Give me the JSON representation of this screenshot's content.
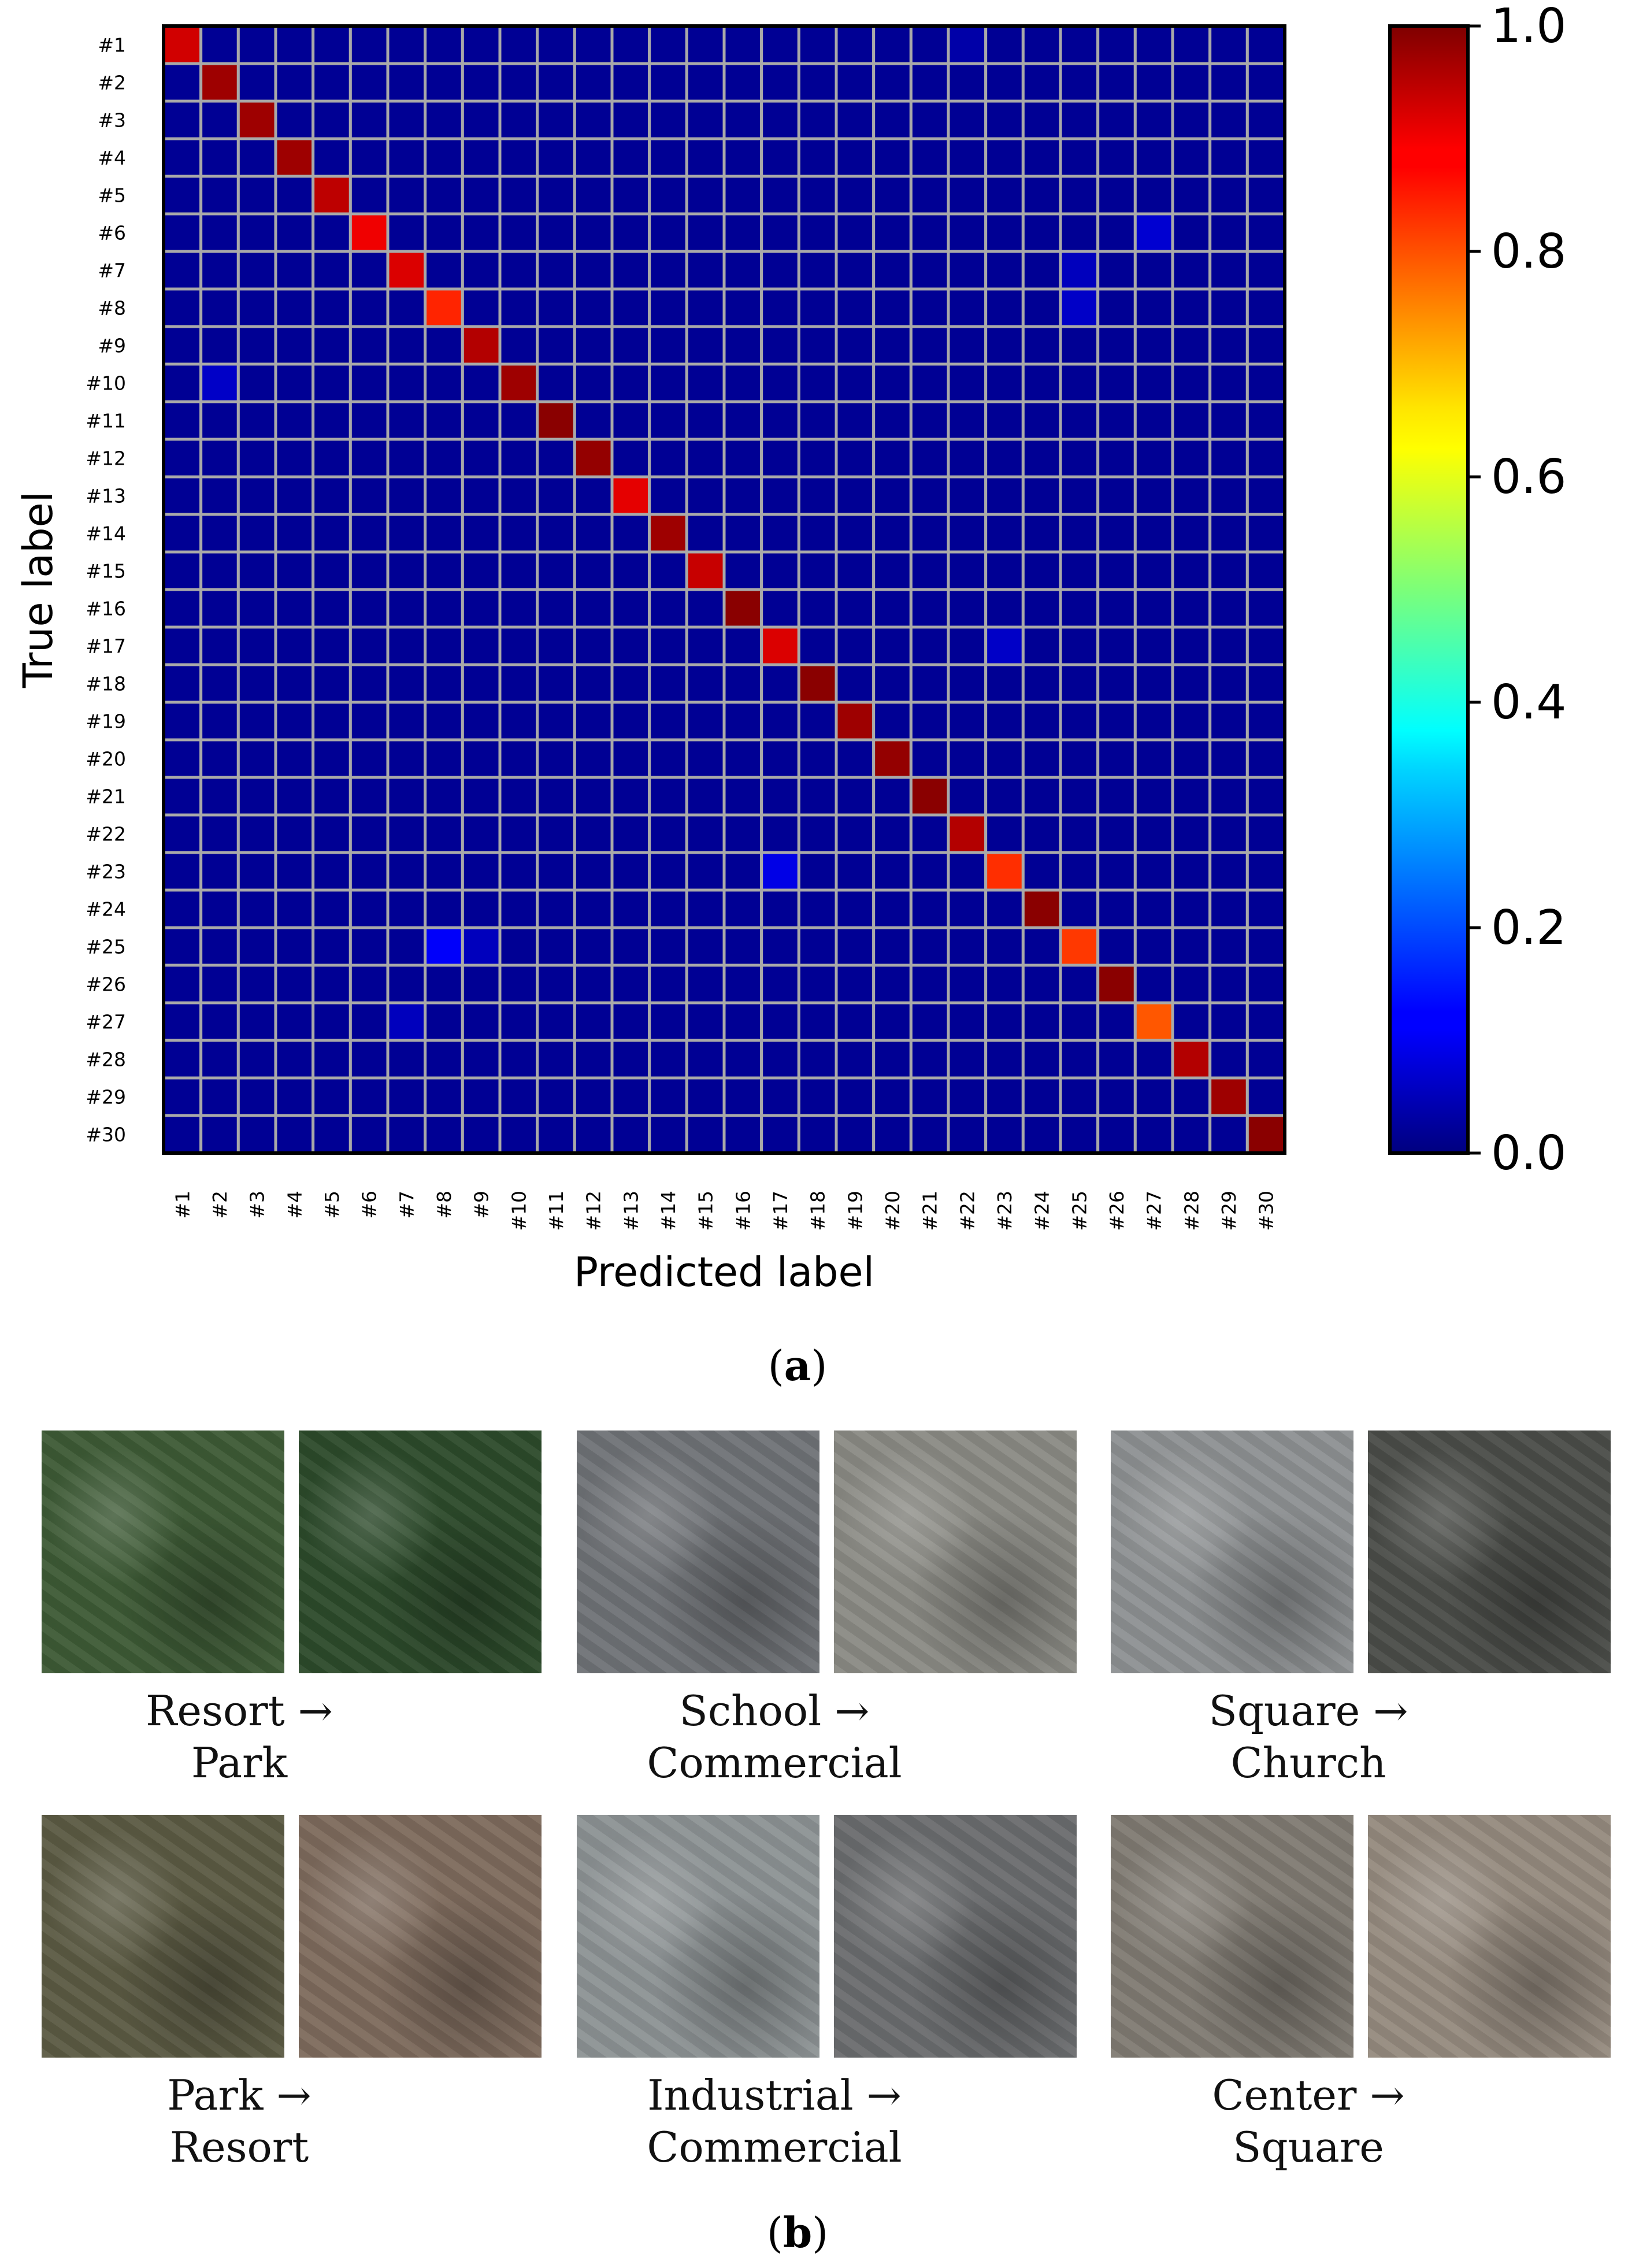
{
  "figure": {
    "caption_a": "a",
    "caption_b": "b"
  },
  "chart_data": {
    "type": "heatmap",
    "xlabel": "Predicted label",
    "ylabel": "True label",
    "labels": [
      "#1",
      "#2",
      "#3",
      "#4",
      "#5",
      "#6",
      "#7",
      "#8",
      "#9",
      "#10",
      "#11",
      "#12",
      "#13",
      "#14",
      "#15",
      "#16",
      "#17",
      "#18",
      "#19",
      "#20",
      "#21",
      "#22",
      "#23",
      "#24",
      "#25",
      "#26",
      "#27",
      "#28",
      "#29",
      "#30"
    ],
    "diagonal": [
      0.92,
      0.97,
      0.97,
      0.97,
      0.94,
      0.89,
      0.91,
      0.84,
      0.95,
      0.97,
      0.99,
      0.98,
      0.9,
      0.97,
      0.93,
      0.99,
      0.91,
      0.99,
      0.97,
      0.98,
      0.99,
      0.95,
      0.83,
      0.99,
      0.82,
      0.99,
      0.79,
      0.95,
      0.97,
      0.99
    ],
    "off_diagonal": [
      {
        "row": "#6",
        "col": "#27",
        "value": 0.08
      },
      {
        "row": "#7",
        "col": "#25",
        "value": 0.06
      },
      {
        "row": "#8",
        "col": "#25",
        "value": 0.07
      },
      {
        "row": "#10",
        "col": "#2",
        "value": 0.07
      },
      {
        "row": "#17",
        "col": "#23",
        "value": 0.07
      },
      {
        "row": "#23",
        "col": "#17",
        "value": 0.1
      },
      {
        "row": "#25",
        "col": "#8",
        "value": 0.12
      },
      {
        "row": "#25",
        "col": "#9",
        "value": 0.06
      },
      {
        "row": "#27",
        "col": "#7",
        "value": 0.06
      },
      {
        "row": "#1",
        "col": "#22",
        "value": 0.04
      }
    ],
    "background_value": 0.02,
    "colorbar": {
      "range": [
        0.0,
        1.0
      ],
      "ticks": [
        "0.0",
        "0.2",
        "0.4",
        "0.6",
        "0.8",
        "1.0"
      ],
      "colormap": "jet"
    },
    "grid": true,
    "grid_color": "#a9a9a9"
  },
  "examples": [
    {
      "line1": "Resort →",
      "line2": "Park",
      "colors": [
        "#3d5a35",
        "#2c4a2a"
      ]
    },
    {
      "line1": "School →",
      "line2": "Commercial",
      "colors": [
        "#6f7276",
        "#8a8a84"
      ]
    },
    {
      "line1": "Square →",
      "line2": "Church",
      "colors": [
        "#8d9092",
        "#4a4c48"
      ]
    },
    {
      "line1": "Park →",
      "line2": "Resort",
      "colors": [
        "#5b5a43",
        "#7d6a5c"
      ]
    },
    {
      "line1": "Industrial →",
      "line2": "Commercial",
      "colors": [
        "#8c9294",
        "#6a6c6e"
      ]
    },
    {
      "line1": "Center →",
      "line2": "Square",
      "colors": [
        "#7f7a72",
        "#958a7e"
      ]
    }
  ]
}
